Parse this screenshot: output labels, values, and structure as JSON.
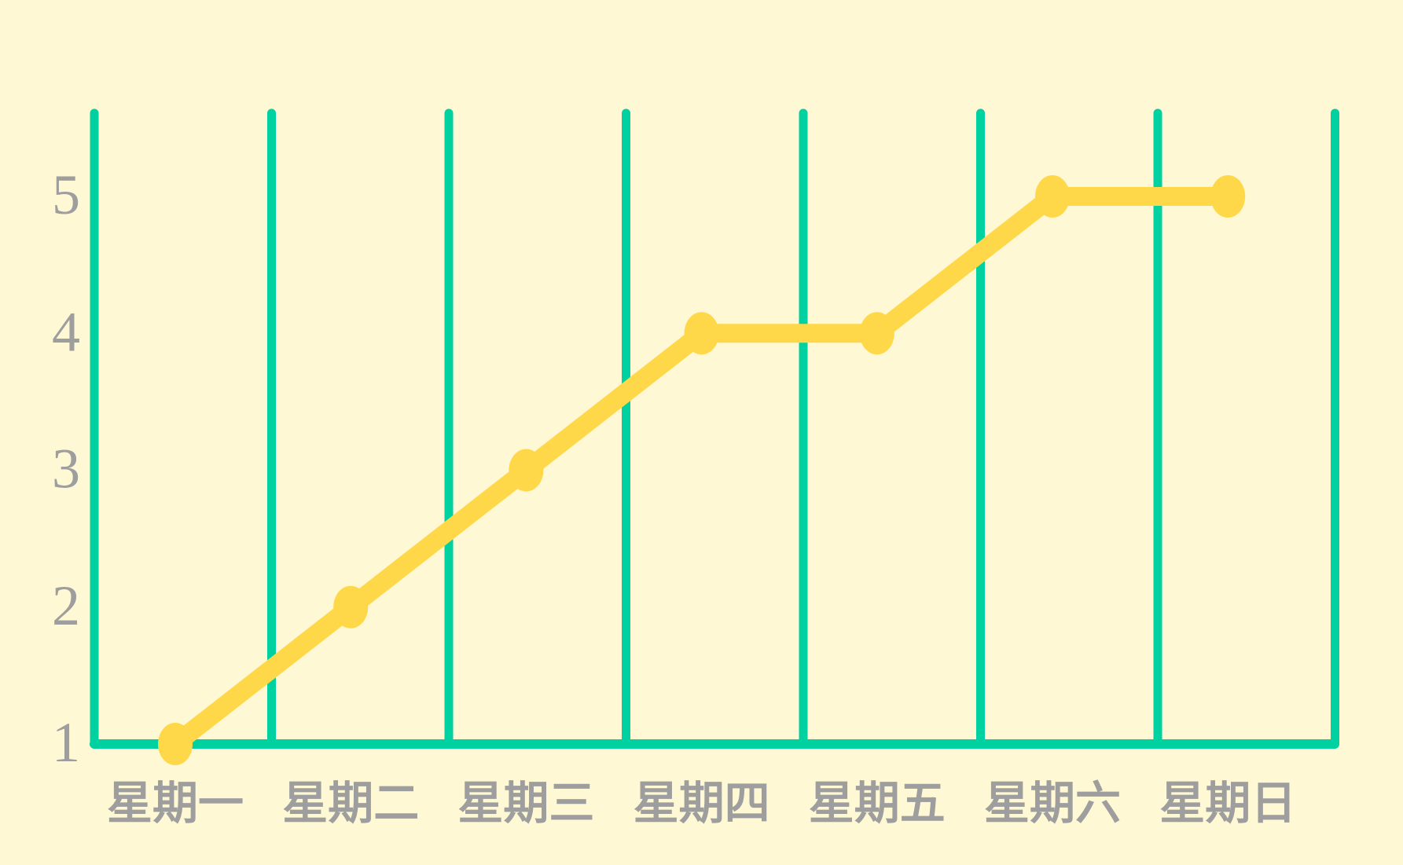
{
  "chart_data": {
    "type": "line",
    "title": "",
    "xlabel": "",
    "ylabel": "",
    "categories": [
      "星期一",
      "星期二",
      "星期三",
      "星期四",
      "星期五",
      "星期六",
      "星期日"
    ],
    "series": [
      {
        "values": [
          1,
          2,
          3,
          4,
          4,
          5,
          5
        ]
      }
    ],
    "yticks": [
      "1",
      "2",
      "3",
      "4",
      "5"
    ],
    "ylim": [
      1,
      5
    ],
    "grid": "vertical",
    "legend": "none"
  },
  "colors": {
    "background": "#FFF8D4",
    "grid": "#00D1A0",
    "line": "#FFD84A",
    "tick_text": "#9E9E9E"
  }
}
